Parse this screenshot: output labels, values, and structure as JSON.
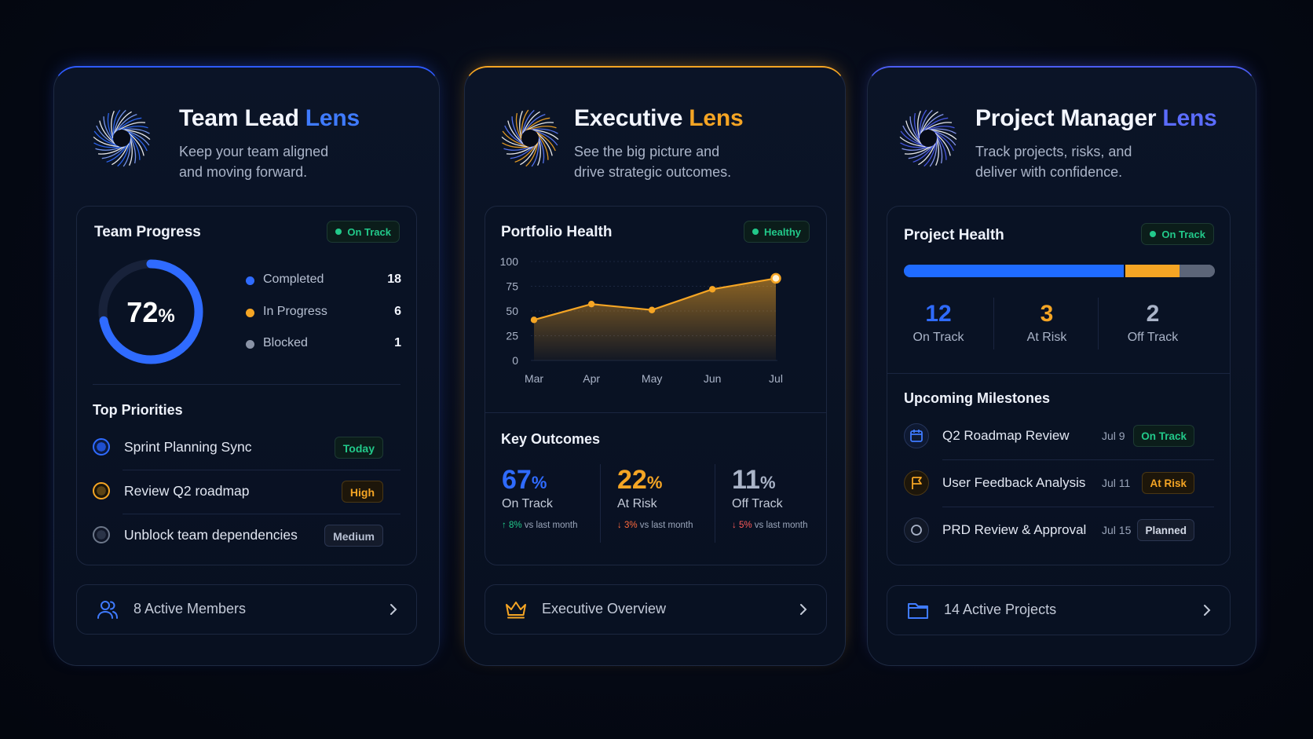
{
  "colors": {
    "accent_blue": "#2f6bff",
    "accent_gold": "#f5a524",
    "accent_indigo": "#4b5df2",
    "success": "#22c98a",
    "danger": "#ff5b5b",
    "muted": "#6b7689"
  },
  "team_lead": {
    "title": "Team Lead",
    "title_accent": "Lens",
    "subtitle_line1": "Keep your team aligned",
    "subtitle_line2": "and moving forward.",
    "progress": {
      "title": "Team Progress",
      "badge": "On Track",
      "percent_value": "72",
      "percent_sign": "%",
      "percent_fraction": 0.72,
      "legend": [
        {
          "label": "Completed",
          "value": "18",
          "color": "#2f6bff"
        },
        {
          "label": "In Progress",
          "value": "6",
          "color": "#f5a524"
        },
        {
          "label": "Blocked",
          "value": "1",
          "color": "#8a93a6"
        }
      ]
    },
    "priorities": {
      "title": "Top Priorities",
      "items": [
        {
          "label": "Sprint Planning Sync",
          "tag": "Today"
        },
        {
          "label": "Review Q2 roadmap",
          "tag": "High"
        },
        {
          "label": "Unblock team dependencies",
          "tag": "Medium"
        }
      ]
    },
    "footer": {
      "icon": "users-icon",
      "label": "8 Active Members"
    }
  },
  "executive": {
    "title": "Executive",
    "title_accent": "Lens",
    "subtitle_line1": "See the big picture and",
    "subtitle_line2": "drive strategic outcomes.",
    "portfolio": {
      "title": "Portfolio Health",
      "badge": "Healthy"
    },
    "chart_data": {
      "type": "area",
      "title": "Portfolio Health",
      "categories": [
        "Mar",
        "Apr",
        "May",
        "Jun",
        "Jul"
      ],
      "x": [
        0,
        1,
        2,
        3,
        4
      ],
      "y_ticks": [
        "100",
        "75",
        "50",
        "25",
        "0"
      ],
      "ylim": [
        0,
        100
      ],
      "grid": true,
      "series": [
        {
          "values": [
            41,
            57,
            51,
            72,
            83
          ],
          "x_positions": [
            0,
            0.95,
            1.95,
            2.95,
            4
          ]
        }
      ]
    },
    "outcomes": {
      "title": "Key Outcomes",
      "items": [
        {
          "value": "67",
          "unit": "%",
          "label": "On Track",
          "arrow": "↑",
          "delta": "8%",
          "suffix": " vs last month"
        },
        {
          "value": "22",
          "unit": "%",
          "label": "At Risk",
          "arrow": "↓",
          "delta": "3%",
          "suffix": " vs last month"
        },
        {
          "value": "11",
          "unit": "%",
          "label": "Off Track",
          "arrow": "↓",
          "delta": "5%",
          "suffix": " vs last month"
        }
      ]
    },
    "footer": {
      "icon": "crown-icon",
      "label": "Executive Overview"
    }
  },
  "project_manager": {
    "title": "Project Manager",
    "title_accent": "Lens",
    "subtitle_line1": "Track projects, risks, and",
    "subtitle_line2": "deliver with confidence.",
    "health": {
      "title": "Project Health",
      "badge": "On Track",
      "bar": {
        "on_track": 12,
        "at_risk": 3,
        "off_track": 2
      },
      "stats": [
        {
          "value": "12",
          "label": "On Track"
        },
        {
          "value": "3",
          "label": "At Risk"
        },
        {
          "value": "2",
          "label": "Off Track"
        }
      ]
    },
    "milestones": {
      "title": "Upcoming Milestones",
      "items": [
        {
          "icon": "calendar-icon",
          "label": "Q2 Roadmap Review",
          "date": "Jul 9",
          "tag": "On Track"
        },
        {
          "icon": "flag-icon",
          "label": "User Feedback Analysis",
          "date": "Jul 11",
          "tag": "At Risk"
        },
        {
          "icon": "circle-icon",
          "label": "PRD Review & Approval",
          "date": "Jul 15",
          "tag": "Planned"
        }
      ]
    },
    "footer": {
      "icon": "folder-icon",
      "label": "14 Active Projects"
    }
  }
}
